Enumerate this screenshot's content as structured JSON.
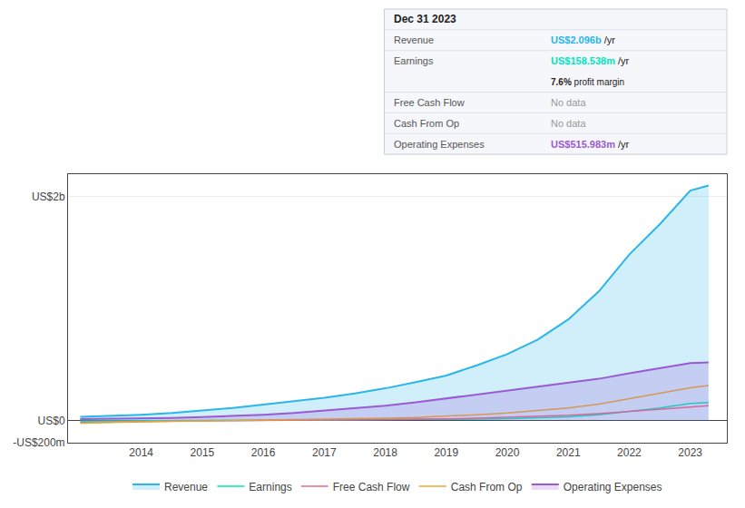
{
  "chart_data": {
    "type": "line",
    "x": [
      2013,
      2013.5,
      2014,
      2014.5,
      2015,
      2015.5,
      2016,
      2016.5,
      2017,
      2017.5,
      2018,
      2018.5,
      2019,
      2019.5,
      2020,
      2020.5,
      2021,
      2021.5,
      2022,
      2022.5,
      2023,
      2023.3
    ],
    "series": [
      {
        "name": "Revenue",
        "color": "#29b6e8",
        "type": "area",
        "values": [
          30,
          38,
          50,
          65,
          85,
          110,
          140,
          168,
          200,
          240,
          285,
          340,
          400,
          490,
          590,
          720,
          900,
          1150,
          1480,
          1750,
          2050,
          2096
        ]
      },
      {
        "name": "Earnings",
        "color": "#00e5c0",
        "values": [
          -8,
          -6,
          -4,
          -2,
          0,
          2,
          4,
          5,
          5,
          6,
          7,
          8,
          8,
          10,
          15,
          20,
          30,
          50,
          80,
          110,
          150,
          158
        ]
      },
      {
        "name": "Free Cash Flow",
        "color": "#e8698a",
        "values": [
          -20,
          -15,
          -10,
          -8,
          -5,
          -3,
          -1,
          0,
          0,
          2,
          5,
          8,
          12,
          18,
          25,
          35,
          45,
          60,
          80,
          100,
          120,
          130
        ]
      },
      {
        "name": "Cash From Op",
        "color": "#e8a830",
        "values": [
          -25,
          -18,
          -12,
          -8,
          -5,
          -2,
          2,
          5,
          8,
          12,
          18,
          25,
          35,
          50,
          65,
          85,
          110,
          145,
          195,
          240,
          290,
          310
        ]
      },
      {
        "name": "Operating Expenses",
        "color": "#9b59d4",
        "type": "area",
        "values": [
          10,
          12,
          15,
          20,
          28,
          38,
          50,
          65,
          85,
          105,
          130,
          160,
          195,
          230,
          265,
          295,
          330,
          370,
          420,
          465,
          510,
          516
        ]
      }
    ],
    "xlim": [
      2012.8,
      2023.6
    ],
    "xticks": [
      2014,
      2015,
      2016,
      2017,
      2018,
      2019,
      2020,
      2021,
      2022,
      2023
    ],
    "ylim": [
      -200,
      2200
    ],
    "yticks": [
      {
        "value": -200,
        "label": "-US$200m"
      },
      {
        "value": 0,
        "label": "US$0"
      },
      {
        "value": 2000,
        "label": "US$2b"
      }
    ],
    "grid": true,
    "legend": "bottom",
    "info_box": {
      "title": "Dec 31 2023",
      "rows": [
        {
          "label": "Revenue",
          "value": "US$2.096b",
          "suffix": "/yr",
          "color": "#29b6e8"
        },
        {
          "label": "Earnings",
          "value": "US$158.538m",
          "suffix": "/yr",
          "color": "#00e5c0",
          "note": "7.6%",
          "note_suffix": "profit margin"
        },
        {
          "label": "Free Cash Flow",
          "value": "No data"
        },
        {
          "label": "Cash From Op",
          "value": "No data"
        },
        {
          "label": "Operating Expenses",
          "value": "US$515.983m",
          "suffix": "/yr",
          "color": "#9b59d4"
        }
      ]
    }
  }
}
